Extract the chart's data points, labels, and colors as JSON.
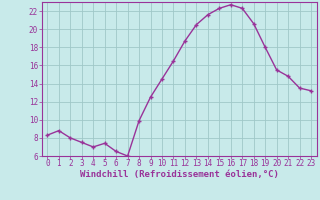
{
  "x": [
    0,
    1,
    2,
    3,
    4,
    5,
    6,
    7,
    8,
    9,
    10,
    11,
    12,
    13,
    14,
    15,
    16,
    17,
    18,
    19,
    20,
    21,
    22,
    23
  ],
  "y": [
    8.3,
    8.8,
    8.0,
    7.5,
    7.0,
    7.4,
    6.5,
    6.0,
    9.9,
    12.5,
    14.5,
    16.5,
    18.7,
    20.5,
    21.6,
    22.3,
    22.7,
    22.3,
    20.6,
    18.0,
    15.5,
    14.8,
    13.5,
    13.2
  ],
  "line_color": "#993399",
  "marker": "+",
  "bg_color": "#c8eaea",
  "grid_color": "#a0c8c8",
  "axis_color": "#993399",
  "xlabel": "Windchill (Refroidissement éolien,°C)",
  "ylim": [
    6,
    23
  ],
  "xlim": [
    -0.5,
    23.5
  ],
  "yticks": [
    6,
    8,
    10,
    12,
    14,
    16,
    18,
    20,
    22
  ],
  "xticks": [
    0,
    1,
    2,
    3,
    4,
    5,
    6,
    7,
    8,
    9,
    10,
    11,
    12,
    13,
    14,
    15,
    16,
    17,
    18,
    19,
    20,
    21,
    22,
    23
  ],
  "tick_fontsize": 5.5,
  "xlabel_fontsize": 6.5
}
